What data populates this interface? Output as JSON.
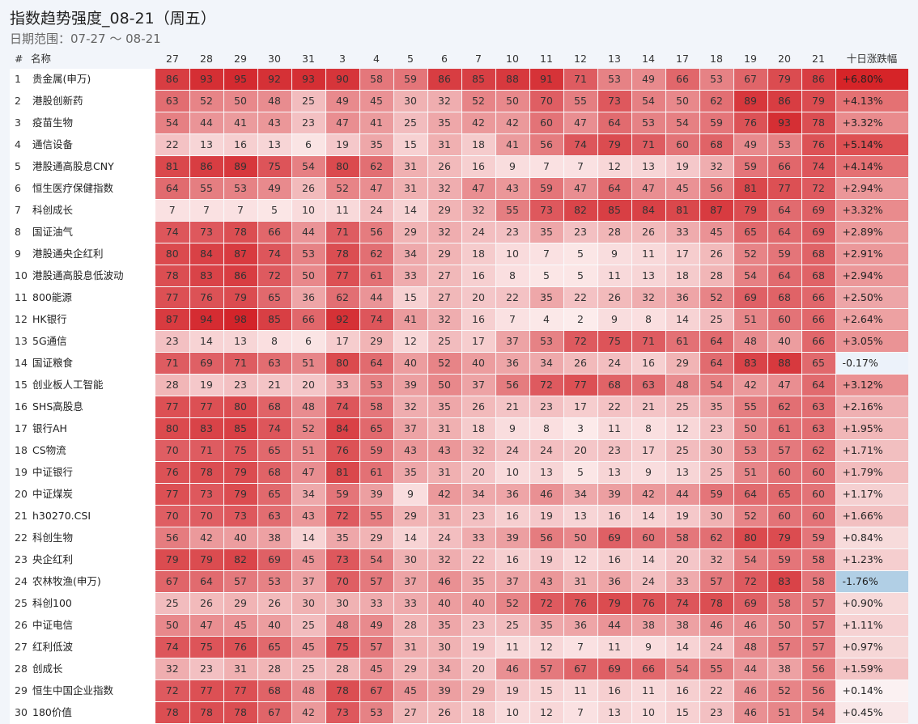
{
  "title": "指数趋势强度_08-21（周五）",
  "subtitle": "日期范围：07-27 ～ 08-21",
  "headers": {
    "idx": "#",
    "name": "名称",
    "change": "十日涨跌幅"
  },
  "chart_data": {
    "type": "heatmap",
    "x": [
      "27",
      "28",
      "29",
      "30",
      "31",
      "3",
      "4",
      "5",
      "6",
      "7",
      "10",
      "11",
      "12",
      "13",
      "14",
      "17",
      "18",
      "19",
      "20",
      "21"
    ],
    "rows": [
      {
        "idx": "1",
        "name": "贵金属(申万)",
        "values": [
          86,
          93,
          95,
          92,
          93,
          90,
          58,
          59,
          86,
          85,
          88,
          91,
          71,
          53,
          49,
          66,
          53,
          67,
          79,
          86
        ],
        "change": "+6.80%"
      },
      {
        "idx": "2",
        "name": "港股创新药",
        "values": [
          63,
          52,
          50,
          48,
          25,
          49,
          45,
          30,
          32,
          52,
          50,
          70,
          55,
          73,
          54,
          50,
          62,
          89,
          86,
          79
        ],
        "change": "+4.13%"
      },
      {
        "idx": "3",
        "name": "疫苗生物",
        "values": [
          54,
          44,
          41,
          43,
          23,
          47,
          41,
          25,
          35,
          42,
          42,
          60,
          47,
          64,
          53,
          54,
          59,
          76,
          93,
          78
        ],
        "change": "+3.32%"
      },
      {
        "idx": "4",
        "name": "通信设备",
        "values": [
          22,
          13,
          16,
          13,
          6,
          19,
          35,
          15,
          31,
          18,
          41,
          56,
          74,
          79,
          71,
          60,
          68,
          49,
          53,
          76
        ],
        "change": "+5.14%"
      },
      {
        "idx": "5",
        "name": "港股通高股息CNY",
        "values": [
          81,
          86,
          89,
          75,
          54,
          80,
          62,
          31,
          26,
          16,
          9,
          7,
          7,
          12,
          13,
          19,
          32,
          59,
          66,
          74
        ],
        "change": "+4.14%"
      },
      {
        "idx": "6",
        "name": "恒生医疗保健指数",
        "values": [
          64,
          55,
          53,
          49,
          26,
          52,
          47,
          31,
          32,
          47,
          43,
          59,
          47,
          64,
          47,
          45,
          56,
          81,
          77,
          72
        ],
        "change": "+2.94%"
      },
      {
        "idx": "7",
        "name": "科创成长",
        "values": [
          7,
          7,
          7,
          5,
          10,
          11,
          24,
          14,
          29,
          32,
          55,
          73,
          82,
          85,
          84,
          81,
          87,
          79,
          64,
          69
        ],
        "change": "+3.32%"
      },
      {
        "idx": "8",
        "name": "国证油气",
        "values": [
          74,
          73,
          78,
          66,
          44,
          71,
          56,
          29,
          32,
          24,
          23,
          35,
          23,
          28,
          26,
          33,
          45,
          65,
          64,
          69
        ],
        "change": "+2.89%"
      },
      {
        "idx": "9",
        "name": "港股通央企红利",
        "values": [
          80,
          84,
          87,
          74,
          53,
          78,
          62,
          34,
          29,
          18,
          10,
          7,
          5,
          9,
          11,
          17,
          26,
          52,
          59,
          68
        ],
        "change": "+2.91%"
      },
      {
        "idx": "10",
        "name": "港股通高股息低波动",
        "values": [
          78,
          83,
          86,
          72,
          50,
          77,
          61,
          33,
          27,
          16,
          8,
          5,
          5,
          11,
          13,
          18,
          28,
          54,
          64,
          68
        ],
        "change": "+2.94%"
      },
      {
        "idx": "11",
        "name": "800能源",
        "values": [
          77,
          76,
          79,
          65,
          36,
          62,
          44,
          15,
          27,
          20,
          22,
          35,
          22,
          26,
          32,
          36,
          52,
          69,
          68,
          66
        ],
        "change": "+2.50%"
      },
      {
        "idx": "12",
        "name": "HK银行",
        "values": [
          87,
          94,
          98,
          85,
          66,
          92,
          74,
          41,
          32,
          16,
          7,
          4,
          2,
          9,
          8,
          14,
          25,
          51,
          60,
          66
        ],
        "change": "+2.64%"
      },
      {
        "idx": "13",
        "name": "5G通信",
        "values": [
          23,
          14,
          13,
          8,
          6,
          17,
          29,
          12,
          25,
          17,
          37,
          53,
          72,
          75,
          71,
          61,
          64,
          48,
          40,
          66
        ],
        "change": "+3.05%"
      },
      {
        "idx": "14",
        "name": "国证粮食",
        "values": [
          71,
          69,
          71,
          63,
          51,
          80,
          64,
          40,
          52,
          40,
          36,
          34,
          26,
          24,
          16,
          29,
          64,
          83,
          88,
          65
        ],
        "change": "-0.17%"
      },
      {
        "idx": "15",
        "name": "创业板人工智能",
        "values": [
          28,
          19,
          23,
          21,
          20,
          33,
          53,
          39,
          50,
          37,
          56,
          72,
          77,
          68,
          63,
          48,
          54,
          42,
          47,
          64
        ],
        "change": "+3.12%"
      },
      {
        "idx": "16",
        "name": "SHS高股息",
        "values": [
          77,
          77,
          80,
          68,
          48,
          74,
          58,
          32,
          35,
          26,
          21,
          23,
          17,
          22,
          21,
          25,
          35,
          55,
          62,
          63
        ],
        "change": "+2.16%"
      },
      {
        "idx": "17",
        "name": "银行AH",
        "values": [
          80,
          83,
          85,
          74,
          52,
          84,
          65,
          37,
          31,
          18,
          9,
          8,
          3,
          11,
          8,
          12,
          23,
          50,
          61,
          63
        ],
        "change": "+1.95%"
      },
      {
        "idx": "18",
        "name": "CS物流",
        "values": [
          70,
          71,
          75,
          65,
          51,
          76,
          59,
          43,
          43,
          32,
          24,
          24,
          20,
          23,
          17,
          25,
          30,
          53,
          57,
          62
        ],
        "change": "+1.71%"
      },
      {
        "idx": "19",
        "name": "中证银行",
        "values": [
          76,
          78,
          79,
          68,
          47,
          81,
          61,
          35,
          31,
          20,
          10,
          13,
          5,
          13,
          9,
          13,
          25,
          51,
          60,
          60
        ],
        "change": "+1.79%"
      },
      {
        "idx": "20",
        "name": "中证煤炭",
        "values": [
          77,
          73,
          79,
          65,
          34,
          59,
          39,
          9,
          42,
          34,
          36,
          46,
          34,
          39,
          42,
          44,
          59,
          64,
          65,
          60
        ],
        "change": "+1.17%"
      },
      {
        "idx": "21",
        "name": "h30270.CSI",
        "values": [
          70,
          70,
          73,
          63,
          43,
          72,
          55,
          29,
          31,
          23,
          16,
          19,
          13,
          16,
          14,
          19,
          30,
          52,
          60,
          60
        ],
        "change": "+1.66%"
      },
      {
        "idx": "22",
        "name": "科创生物",
        "values": [
          56,
          42,
          40,
          38,
          14,
          35,
          29,
          14,
          24,
          33,
          39,
          56,
          50,
          69,
          60,
          58,
          62,
          80,
          79,
          59
        ],
        "change": "+0.84%"
      },
      {
        "idx": "23",
        "name": "央企红利",
        "values": [
          79,
          79,
          82,
          69,
          45,
          73,
          54,
          30,
          32,
          22,
          16,
          19,
          12,
          16,
          14,
          20,
          32,
          54,
          59,
          58
        ],
        "change": "+1.23%"
      },
      {
        "idx": "24",
        "name": "农林牧渔(申万)",
        "values": [
          67,
          64,
          57,
          53,
          37,
          70,
          57,
          37,
          46,
          35,
          37,
          43,
          31,
          36,
          24,
          33,
          57,
          72,
          83,
          58
        ],
        "change": "-1.76%"
      },
      {
        "idx": "25",
        "name": "科创100",
        "values": [
          25,
          26,
          29,
          26,
          30,
          30,
          33,
          33,
          40,
          40,
          52,
          72,
          76,
          79,
          76,
          74,
          78,
          69,
          58,
          57
        ],
        "change": "+0.90%"
      },
      {
        "idx": "26",
        "name": "中证电信",
        "values": [
          50,
          47,
          45,
          40,
          25,
          48,
          49,
          28,
          35,
          23,
          25,
          35,
          36,
          44,
          38,
          38,
          46,
          46,
          50,
          57
        ],
        "change": "+1.11%"
      },
      {
        "idx": "27",
        "name": "红利低波",
        "values": [
          74,
          75,
          76,
          65,
          45,
          75,
          57,
          31,
          30,
          19,
          11,
          12,
          7,
          11,
          9,
          14,
          24,
          48,
          57,
          57
        ],
        "change": "+0.97%"
      },
      {
        "idx": "28",
        "name": "创成长",
        "values": [
          32,
          23,
          31,
          28,
          25,
          28,
          45,
          29,
          34,
          20,
          46,
          57,
          67,
          69,
          66,
          54,
          55,
          44,
          38,
          56
        ],
        "change": "+1.59%"
      },
      {
        "idx": "29",
        "name": "恒生中国企业指数",
        "values": [
          72,
          77,
          77,
          68,
          48,
          78,
          67,
          45,
          39,
          29,
          19,
          15,
          11,
          16,
          11,
          16,
          22,
          46,
          52,
          56
        ],
        "change": "+0.14%"
      },
      {
        "idx": "30",
        "name": "180价值",
        "values": [
          78,
          78,
          78,
          67,
          42,
          73,
          53,
          27,
          26,
          18,
          10,
          12,
          7,
          13,
          10,
          15,
          23,
          46,
          51,
          54
        ],
        "change": "+0.45%"
      }
    ]
  }
}
